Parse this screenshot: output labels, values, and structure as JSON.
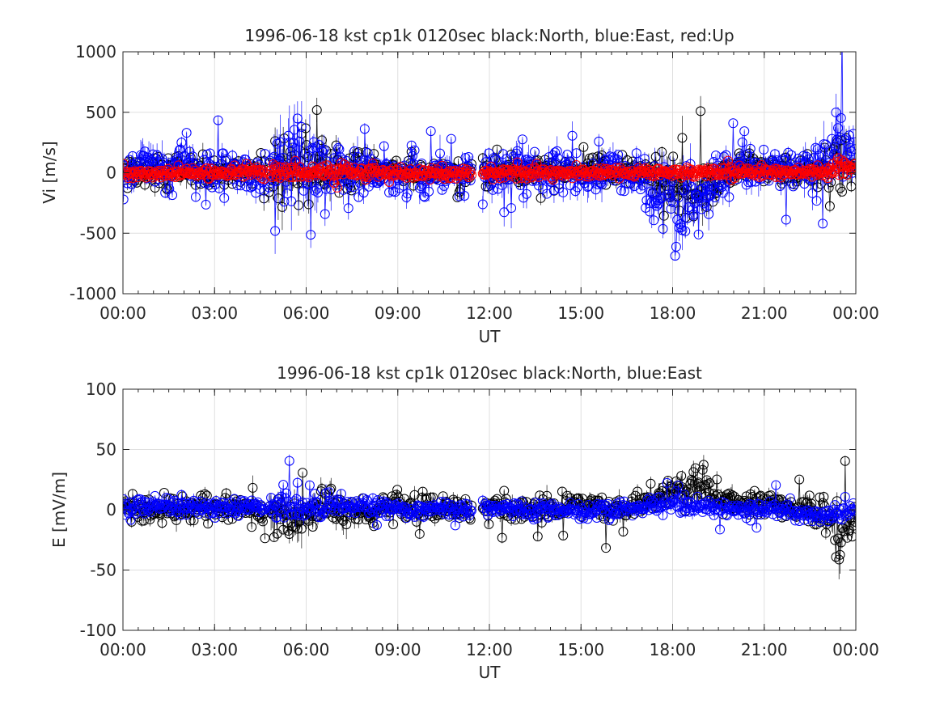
{
  "figure": {
    "background": "#ffffff",
    "colors": {
      "north": "#000000",
      "east": "#0000ff",
      "up": "#ff0000",
      "grid": "#dfdfdf",
      "axis": "#262626"
    }
  },
  "chart_data": [
    {
      "type": "scatter",
      "title": "1996-06-18 kst cp1k 0120sec black:North, blue:East, red:Up",
      "xlabel": "UT",
      "ylabel": "Vi [m/s]",
      "xlim_hours": [
        0,
        24
      ],
      "ylim": [
        -1000,
        1000
      ],
      "xtick_labels": [
        "00:00",
        "03:00",
        "06:00",
        "09:00",
        "12:00",
        "15:00",
        "18:00",
        "21:00",
        "00:00"
      ],
      "ytick_labels": [
        "-1000",
        "-500",
        "0",
        "500",
        "1000"
      ],
      "ytick_values": [
        -1000,
        -500,
        0,
        500,
        1000
      ],
      "grid": true,
      "data_gaps_hours": [
        [
          4.65,
          4.75
        ],
        [
          11.42,
          11.75
        ]
      ],
      "series": [
        {
          "name": "North",
          "color": "#000000",
          "marker": "circle",
          "errorbars": true,
          "envelope": {
            "x_hours": [
              0,
              1,
              2,
              3,
              4,
              4.6,
              5,
              5.5,
              6,
              6.5,
              7,
              8,
              9,
              10,
              11,
              11.4,
              11.8,
              12,
              13,
              14,
              15,
              16,
              17,
              17.5,
              18,
              18.5,
              19,
              19.5,
              20,
              21,
              22,
              23,
              23.5,
              24
            ],
            "mean": [
              10,
              15,
              20,
              15,
              10,
              5,
              20,
              40,
              30,
              10,
              20,
              10,
              5,
              0,
              -10,
              -15,
              20,
              25,
              20,
              15,
              10,
              5,
              0,
              -20,
              -80,
              -150,
              -100,
              -40,
              20,
              30,
              20,
              0,
              50,
              20
            ],
            "spread": [
              120,
              130,
              120,
              110,
              100,
              110,
              200,
              250,
              220,
              200,
              160,
              120,
              100,
              90,
              90,
              80,
              140,
              130,
              120,
              110,
              110,
              100,
              110,
              180,
              220,
              240,
              200,
              150,
              110,
              100,
              110,
              140,
              220,
              160
            ]
          }
        },
        {
          "name": "East",
          "color": "#0000ff",
          "marker": "circle",
          "errorbars": true,
          "envelope": {
            "x_hours": [
              0,
              1,
              2,
              3,
              4,
              4.6,
              5,
              5.5,
              6,
              6.5,
              7,
              8,
              9,
              10,
              11,
              11.4,
              11.8,
              12,
              13,
              14,
              15,
              16,
              17,
              17.5,
              18,
              18.5,
              19,
              19.5,
              20,
              21,
              22,
              23,
              23.5,
              24
            ],
            "mean": [
              20,
              40,
              30,
              20,
              10,
              0,
              60,
              120,
              80,
              40,
              30,
              20,
              0,
              -10,
              -20,
              -20,
              30,
              30,
              20,
              0,
              -20,
              -40,
              -50,
              -150,
              -250,
              -280,
              -220,
              -100,
              20,
              40,
              50,
              80,
              200,
              100
            ],
            "spread": [
              180,
              200,
              180,
              160,
              150,
              160,
              300,
              380,
              350,
              300,
              250,
              180,
              150,
              140,
              150,
              140,
              220,
              200,
              180,
              170,
              200,
              190,
              180,
              250,
              300,
              320,
              280,
              200,
              160,
              150,
              170,
              200,
              320,
              220
            ]
          }
        },
        {
          "name": "Up",
          "color": "#ff0000",
          "marker": "circle",
          "errorbars": true,
          "envelope": {
            "x_hours": [
              0,
              4.6,
              5,
              6,
              7,
              8,
              11.4,
              11.8,
              16,
              20,
              23,
              23.5,
              24
            ],
            "mean": [
              0,
              0,
              5,
              10,
              5,
              0,
              -10,
              0,
              0,
              5,
              10,
              60,
              20
            ],
            "spread": [
              45,
              45,
              60,
              60,
              50,
              40,
              35,
              45,
              40,
              40,
              45,
              70,
              50
            ]
          }
        }
      ]
    },
    {
      "type": "scatter",
      "title": "1996-06-18 kst cp1k 0120sec black:North, blue:East",
      "xlabel": "UT",
      "ylabel": "E [mV/m]",
      "xlim_hours": [
        0,
        24
      ],
      "ylim": [
        -100,
        100
      ],
      "xtick_labels": [
        "00:00",
        "03:00",
        "06:00",
        "09:00",
        "12:00",
        "15:00",
        "18:00",
        "21:00",
        "00:00"
      ],
      "ytick_labels": [
        "-100",
        "-50",
        "0",
        "50",
        "100"
      ],
      "ytick_values": [
        -100,
        -50,
        0,
        50,
        100
      ],
      "grid": true,
      "data_gaps_hours": [
        [
          4.65,
          4.75
        ],
        [
          11.42,
          11.75
        ]
      ],
      "series": [
        {
          "name": "North",
          "color": "#000000",
          "marker": "circle",
          "errorbars": true,
          "envelope": {
            "x_hours": [
              0,
              1,
              2,
              3,
              4,
              4.6,
              5,
              5.5,
              6,
              6.5,
              7,
              8,
              9,
              10,
              11,
              11.4,
              11.8,
              12,
              13,
              14,
              15,
              16,
              17,
              17.5,
              18,
              18.5,
              19,
              19.5,
              20,
              21,
              22,
              23,
              23.5,
              24
            ],
            "mean": [
              0,
              0,
              0,
              0,
              0,
              0,
              -5,
              -10,
              0,
              5,
              0,
              0,
              0,
              0,
              0,
              0,
              0,
              0,
              0,
              0,
              3,
              0,
              2,
              8,
              15,
              20,
              18,
              10,
              5,
              3,
              0,
              -5,
              -25,
              -10
            ],
            "spread": [
              10,
              11,
              11,
              10,
              10,
              10,
              18,
              22,
              18,
              16,
              14,
              11,
              10,
              9,
              9,
              9,
              12,
              11,
              10,
              10,
              10,
              9,
              10,
              12,
              14,
              15,
              14,
              11,
              10,
              9,
              10,
              11,
              22,
              14
            ]
          }
        },
        {
          "name": "East",
          "color": "#0000ff",
          "marker": "circle",
          "errorbars": true,
          "envelope": {
            "x_hours": [
              0,
              1,
              2,
              3,
              4,
              4.6,
              5,
              5.5,
              6,
              6.5,
              7,
              8,
              9,
              10,
              11,
              11.4,
              11.8,
              12,
              13,
              14,
              15,
              16,
              17,
              17.5,
              18,
              18.5,
              19,
              19.5,
              20,
              21,
              22,
              23,
              23.5,
              24
            ],
            "mean": [
              3,
              3,
              2,
              1,
              2,
              2,
              5,
              8,
              6,
              5,
              4,
              2,
              1,
              0,
              0,
              0,
              1,
              1,
              0,
              -1,
              -1,
              0,
              1,
              3,
              4,
              4,
              3,
              2,
              1,
              0,
              -2,
              -4,
              -1,
              0
            ],
            "spread": [
              6,
              7,
              7,
              6,
              6,
              6,
              12,
              14,
              12,
              11,
              9,
              7,
              6,
              6,
              6,
              6,
              7,
              7,
              6,
              6,
              6,
              6,
              6,
              7,
              8,
              8,
              7,
              7,
              6,
              6,
              7,
              7,
              9,
              7
            ]
          }
        }
      ]
    }
  ]
}
